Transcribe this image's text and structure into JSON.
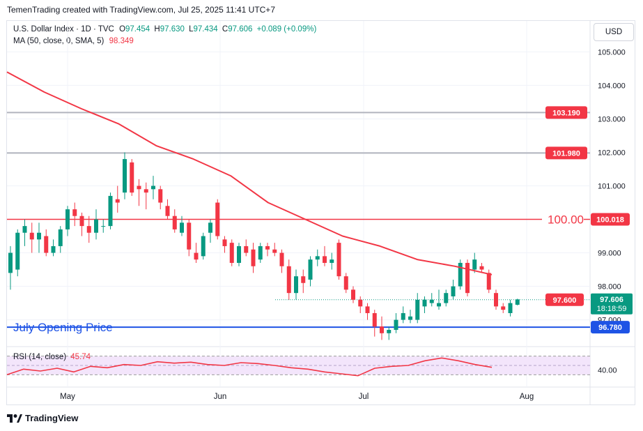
{
  "caption": "TemenTrading created with TradingView.com, Jul 25, 2025 11:41 UTC+7",
  "legend": {
    "title": "U.S. Dollar Index · 1D · TVC",
    "open_label": "O",
    "open": "97.454",
    "high_label": "H",
    "high": "97.630",
    "low_label": "L",
    "low": "97.434",
    "close_label": "C",
    "close": "97.606",
    "change": "+0.089 (+0.09%)",
    "ma_label": "MA (50, close, 0, SMA, 5)",
    "ma_value": "98.349"
  },
  "currency": "USD",
  "rsi": {
    "label": "RSI (14, close)",
    "value": "45.74",
    "axis_label": "40.00"
  },
  "footer": {
    "brand": "TradingView"
  },
  "colors": {
    "up": "#089981",
    "down": "#f23645",
    "ma": "#f23645",
    "rsi": "#f23645",
    "blue_line": "#1e53e5",
    "grey_line": "#b2b5be"
  },
  "chart_data": {
    "type": "candlestick",
    "symbol": "U.S. Dollar Index",
    "interval": "1D",
    "x_ticks": [
      "May",
      "Jun",
      "Jul",
      "Aug"
    ],
    "y_ticks": [
      "105.000",
      "104.000",
      "103.000",
      "102.000",
      "101.000",
      "99.000",
      "98.000",
      "97.000"
    ],
    "ylim": [
      96.2,
      105.3
    ],
    "candles": [
      [
        98.4,
        99.2,
        97.9,
        99.0
      ],
      [
        98.5,
        99.7,
        98.3,
        99.6
      ],
      [
        99.6,
        100.0,
        99.2,
        99.8
      ],
      [
        99.6,
        99.9,
        99.0,
        99.4
      ],
      [
        99.4,
        99.9,
        99.0,
        99.6
      ],
      [
        99.5,
        99.7,
        98.9,
        99.0
      ],
      [
        99.0,
        99.4,
        98.9,
        99.2
      ],
      [
        99.2,
        99.8,
        99.0,
        99.7
      ],
      [
        99.7,
        100.4,
        99.5,
        100.3
      ],
      [
        100.3,
        100.5,
        99.8,
        100.1
      ],
      [
        100.1,
        100.2,
        99.5,
        99.8
      ],
      [
        99.8,
        100.1,
        99.3,
        99.6
      ],
      [
        99.6,
        100.3,
        99.4,
        100.0
      ],
      [
        99.8,
        100.0,
        99.6,
        99.8
      ],
      [
        99.8,
        100.8,
        99.7,
        100.7
      ],
      [
        100.6,
        101.0,
        100.2,
        100.5
      ],
      [
        100.8,
        102.0,
        100.6,
        101.8
      ],
      [
        101.7,
        101.8,
        100.7,
        100.8
      ],
      [
        101.0,
        101.2,
        100.4,
        100.9
      ],
      [
        100.9,
        101.1,
        100.3,
        100.8
      ],
      [
        100.9,
        101.3,
        100.6,
        101.0
      ],
      [
        100.9,
        101.0,
        100.3,
        100.5
      ],
      [
        100.4,
        100.6,
        100.0,
        100.1
      ],
      [
        100.1,
        100.3,
        99.6,
        99.7
      ],
      [
        99.6,
        100.1,
        99.5,
        99.9
      ],
      [
        99.9,
        100.0,
        98.9,
        99.1
      ],
      [
        99.0,
        99.3,
        98.7,
        98.8
      ],
      [
        98.9,
        99.6,
        98.8,
        99.5
      ],
      [
        99.6,
        100.0,
        99.3,
        99.9
      ],
      [
        100.5,
        100.6,
        99.4,
        99.5
      ],
      [
        99.4,
        99.5,
        99.0,
        99.2
      ],
      [
        99.3,
        99.4,
        98.6,
        98.7
      ],
      [
        98.7,
        99.3,
        98.6,
        99.2
      ],
      [
        99.2,
        99.4,
        98.9,
        99.0
      ],
      [
        99.1,
        99.3,
        98.4,
        98.6
      ],
      [
        98.8,
        99.3,
        98.7,
        99.2
      ],
      [
        99.2,
        99.3,
        98.9,
        99.1
      ],
      [
        99.1,
        99.3,
        98.9,
        99.0
      ],
      [
        99.0,
        99.1,
        98.4,
        98.6
      ],
      [
        98.6,
        98.8,
        97.6,
        97.8
      ],
      [
        97.8,
        98.5,
        97.6,
        98.3
      ],
      [
        98.3,
        98.5,
        97.8,
        98.1
      ],
      [
        98.2,
        98.9,
        98.0,
        98.8
      ],
      [
        98.8,
        99.1,
        98.6,
        98.9
      ],
      [
        98.9,
        99.2,
        98.6,
        98.7
      ],
      [
        98.7,
        99.0,
        98.5,
        98.8
      ],
      [
        99.3,
        99.4,
        98.2,
        98.3
      ],
      [
        98.3,
        98.4,
        97.8,
        97.9
      ],
      [
        97.9,
        98.0,
        97.5,
        97.6
      ],
      [
        97.6,
        97.7,
        97.2,
        97.4
      ],
      [
        97.4,
        97.5,
        97.0,
        97.2
      ],
      [
        97.2,
        97.3,
        96.5,
        96.8
      ],
      [
        96.8,
        97.1,
        96.4,
        96.6
      ],
      [
        96.6,
        96.8,
        96.4,
        96.7
      ],
      [
        96.7,
        97.2,
        96.6,
        97.0
      ],
      [
        97.0,
        97.4,
        96.9,
        97.2
      ],
      [
        97.0,
        97.3,
        96.9,
        97.1
      ],
      [
        97.0,
        97.8,
        96.9,
        97.6
      ],
      [
        97.4,
        97.7,
        97.2,
        97.6
      ],
      [
        97.5,
        97.8,
        97.4,
        97.6
      ],
      [
        97.4,
        97.9,
        97.3,
        97.5
      ],
      [
        97.5,
        97.9,
        97.4,
        97.8
      ],
      [
        97.7,
        98.2,
        97.6,
        98.0
      ],
      [
        98.0,
        98.8,
        97.9,
        98.7
      ],
      [
        98.7,
        98.8,
        97.7,
        97.8
      ],
      [
        98.5,
        99.0,
        98.4,
        98.8
      ],
      [
        98.6,
        98.7,
        98.4,
        98.5
      ],
      [
        98.4,
        98.5,
        97.8,
        97.9
      ],
      [
        97.8,
        97.9,
        97.3,
        97.4
      ],
      [
        97.4,
        97.5,
        97.2,
        97.3
      ],
      [
        97.2,
        97.6,
        97.1,
        97.5
      ],
      [
        97.45,
        97.63,
        97.43,
        97.61
      ]
    ],
    "ma": {
      "name": "MA (50, close, 0, SMA, 5)",
      "values": [
        104.4,
        103.8,
        103.3,
        102.85,
        102.2,
        101.8,
        101.3,
        100.5,
        100.0,
        99.5,
        99.2,
        98.8,
        98.6,
        98.35
      ]
    },
    "rsi": {
      "name": "RSI (14, close)",
      "values": [
        30,
        42,
        38,
        44,
        36,
        48,
        45,
        52,
        50,
        58,
        55,
        57,
        52,
        50,
        56,
        54,
        50,
        45,
        42,
        36,
        32,
        28,
        44,
        48,
        50,
        60,
        66,
        60,
        52,
        46
      ]
    },
    "levels": [
      {
        "label": "103.190",
        "value": 103.19
      },
      {
        "label": "101.980",
        "value": 101.98
      },
      {
        "label": "100.00",
        "value": 100.0
      },
      {
        "label": "100.018",
        "value": 100.018
      },
      {
        "label": "97.600",
        "value": 97.6
      },
      {
        "label": "97.606",
        "value": 97.606
      },
      {
        "label": "18:18:59",
        "value": 97.606
      },
      {
        "label": "July Opening Price",
        "value": 96.78
      },
      {
        "label": "96.780",
        "value": 96.78
      }
    ]
  }
}
